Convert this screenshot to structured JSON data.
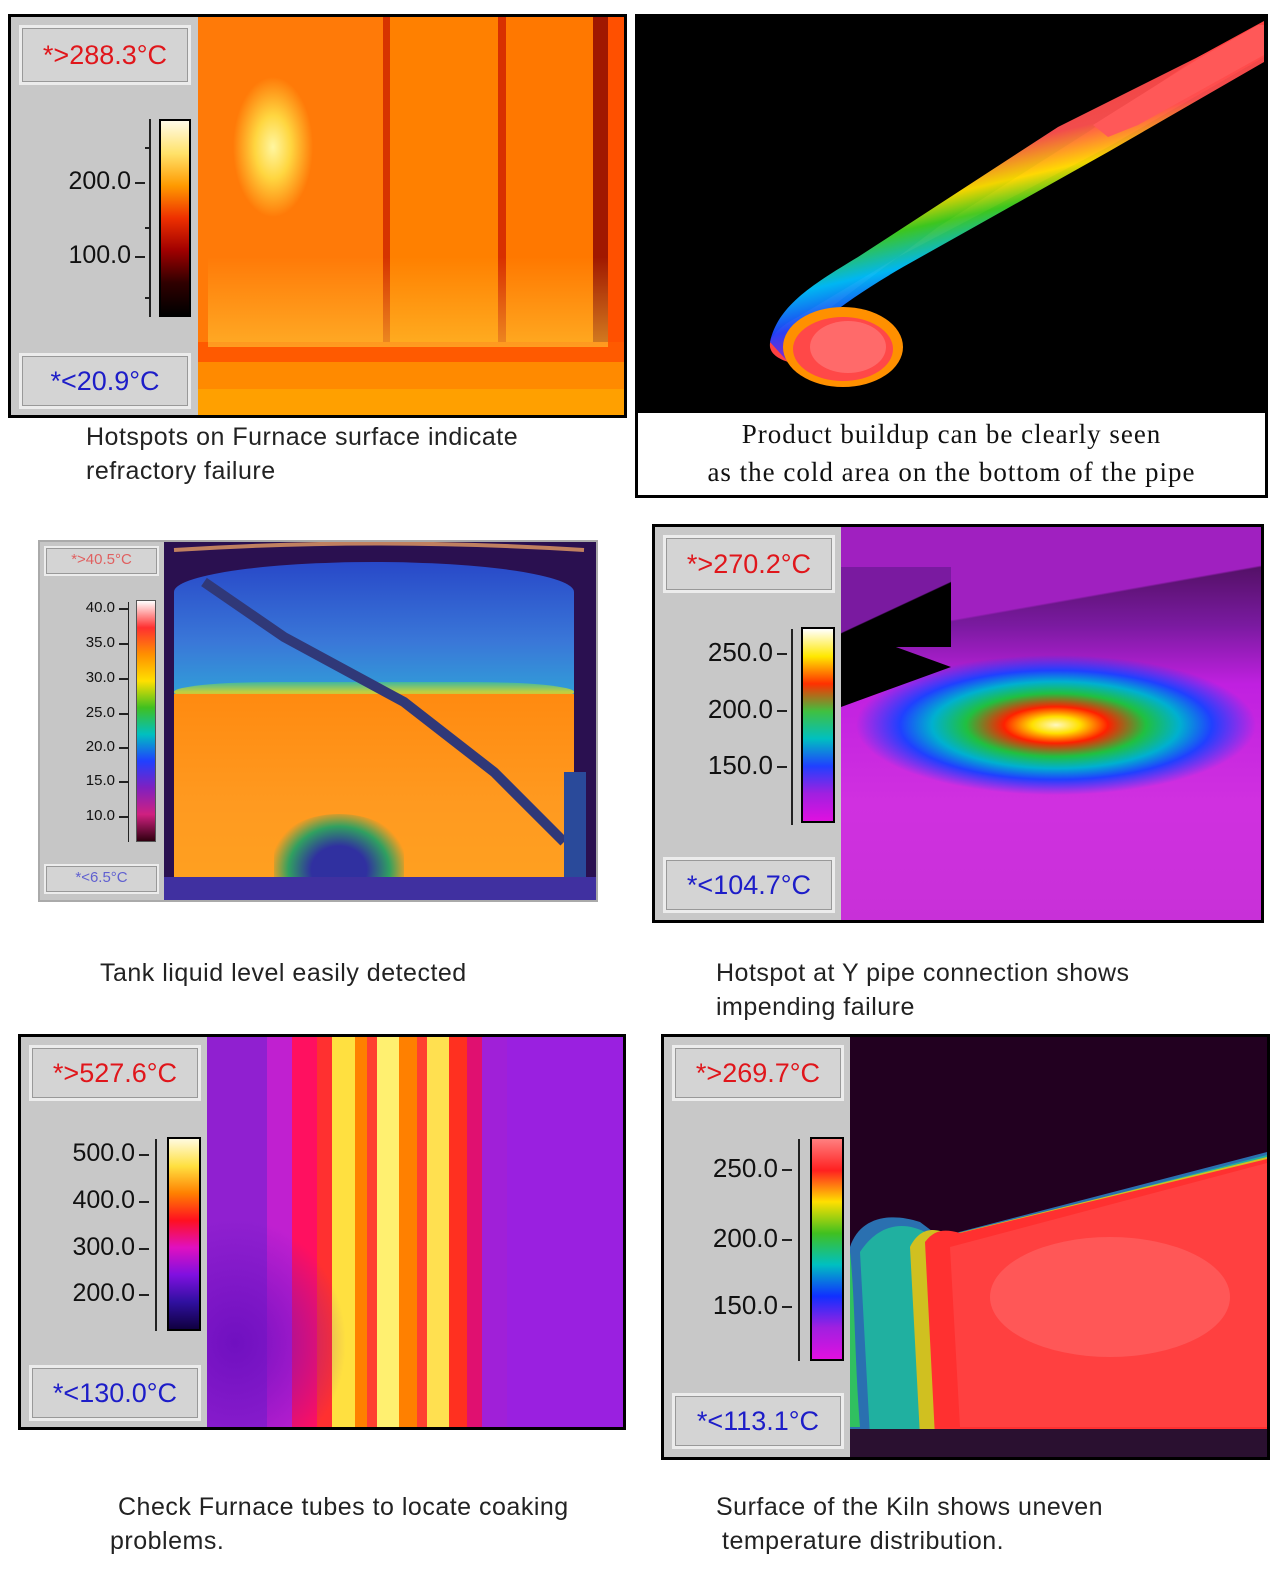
{
  "panels": [
    {
      "id": "furnace-surface",
      "max": "*>288.3°C",
      "min": "*<20.9°C",
      "ticks": [
        "200.0",
        "100.0"
      ],
      "caption_lines": [
        "Hotspots on Furnace surface indicate",
        "refractory failure"
      ],
      "palette": "ironbow"
    },
    {
      "id": "pipe-buildup",
      "caption_lines": [
        "Product buildup can be clearly seen",
        "as the cold area on the bottom of the pipe"
      ],
      "palette": "rainbow"
    },
    {
      "id": "tank-level",
      "max": "*>40.5°C",
      "min": "*<6.5°C",
      "ticks": [
        "40.0",
        "35.0",
        "30.0",
        "25.0",
        "20.0",
        "15.0",
        "10.0"
      ],
      "caption_lines": [
        "Tank liquid level easily detected"
      ],
      "palette": "rainbow"
    },
    {
      "id": "y-pipe",
      "max": "*>270.2°C",
      "min": "*<104.7°C",
      "ticks": [
        "250.0",
        "200.0",
        "150.0"
      ],
      "caption_lines": [
        "Hotspot at Y pipe connection shows",
        "impending failure"
      ],
      "palette": "rainbow"
    },
    {
      "id": "furnace-tubes",
      "max": "*>527.6°C",
      "min": "*<130.0°C",
      "ticks": [
        "500.0",
        "400.0",
        "300.0",
        "200.0"
      ],
      "caption_lines": [
        "Check Furnace tubes to locate coaking",
        "problems."
      ],
      "palette": "ironbow"
    },
    {
      "id": "kiln",
      "max": "*>269.7°C",
      "min": "*<113.1°C",
      "ticks": [
        "250.0",
        "200.0",
        "150.0"
      ],
      "caption_lines": [
        "Surface of the Kiln shows uneven",
        "temperature distribution."
      ],
      "palette": "rainbow"
    }
  ]
}
